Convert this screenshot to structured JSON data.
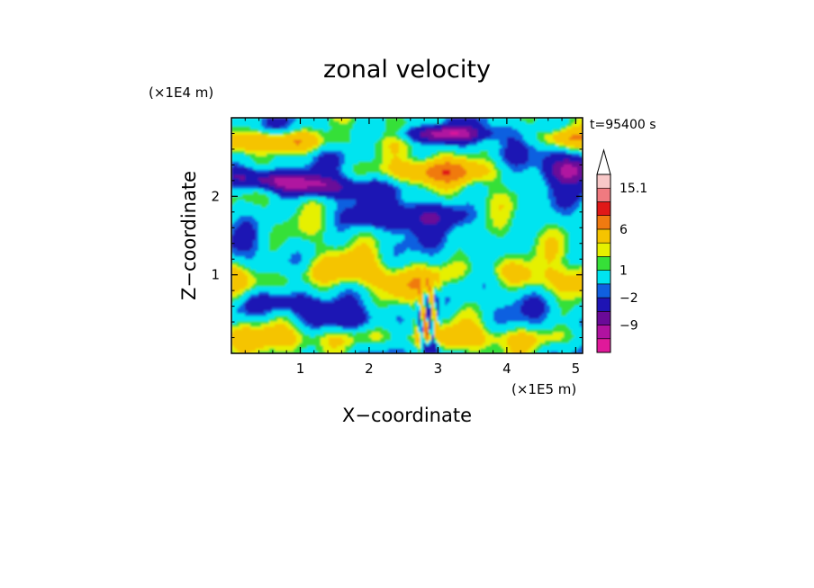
{
  "chart_data": {
    "type": "heatmap",
    "title": "zonal velocity",
    "xlabel": "X−coordinate",
    "ylabel": "Z−coordinate",
    "x_unit": "(×1E5 m)",
    "y_unit": "(×1E4 m)",
    "time_label": "t=95400 s",
    "xlim": [
      0,
      5.1
    ],
    "ylim": [
      0,
      3.0
    ],
    "x_ticks": [
      {
        "value": 1,
        "label": "1"
      },
      {
        "value": 2,
        "label": "2"
      },
      {
        "value": 3,
        "label": "3"
      },
      {
        "value": 4,
        "label": "4"
      },
      {
        "value": 5,
        "label": "5"
      }
    ],
    "y_ticks": [
      {
        "value": 1,
        "label": "1"
      },
      {
        "value": 2,
        "label": "2"
      }
    ],
    "colorbar": {
      "levels": [
        -15.1,
        -12,
        -9,
        -6,
        -2,
        -1,
        1,
        2,
        3,
        6,
        9,
        12,
        15.1
      ],
      "colors": [
        "#e0199a",
        "#b012a0",
        "#6a0a98",
        "#1e14b4",
        "#1060e0",
        "#00e4f0",
        "#36e038",
        "#e6f000",
        "#f5c400",
        "#f07a10",
        "#e01818",
        "#f07a80",
        "#f8c8c8"
      ],
      "labels": [
        {
          "value": 15.1,
          "label": "15.1"
        },
        {
          "value": 6,
          "label": "6"
        },
        {
          "value": 1,
          "label": "1"
        },
        {
          "value": -2,
          "label": "−2"
        },
        {
          "value": -9,
          "label": "−9"
        }
      ]
    },
    "field_description": "Zonal velocity over X (0-5.1 ×1E5 m) and Z (0-3 ×1E4 m): positive bands near top-left (~Z 2.6-2.8) and at Z~2.3 from X 2-4; strong negative bands at Z~2.1-2.4 (left), Z~2.8 (X 2.5-3.7) and Z~2.2-2.6 (right); mixed positive/negative layers below with a wave pattern near X~2.9"
  }
}
